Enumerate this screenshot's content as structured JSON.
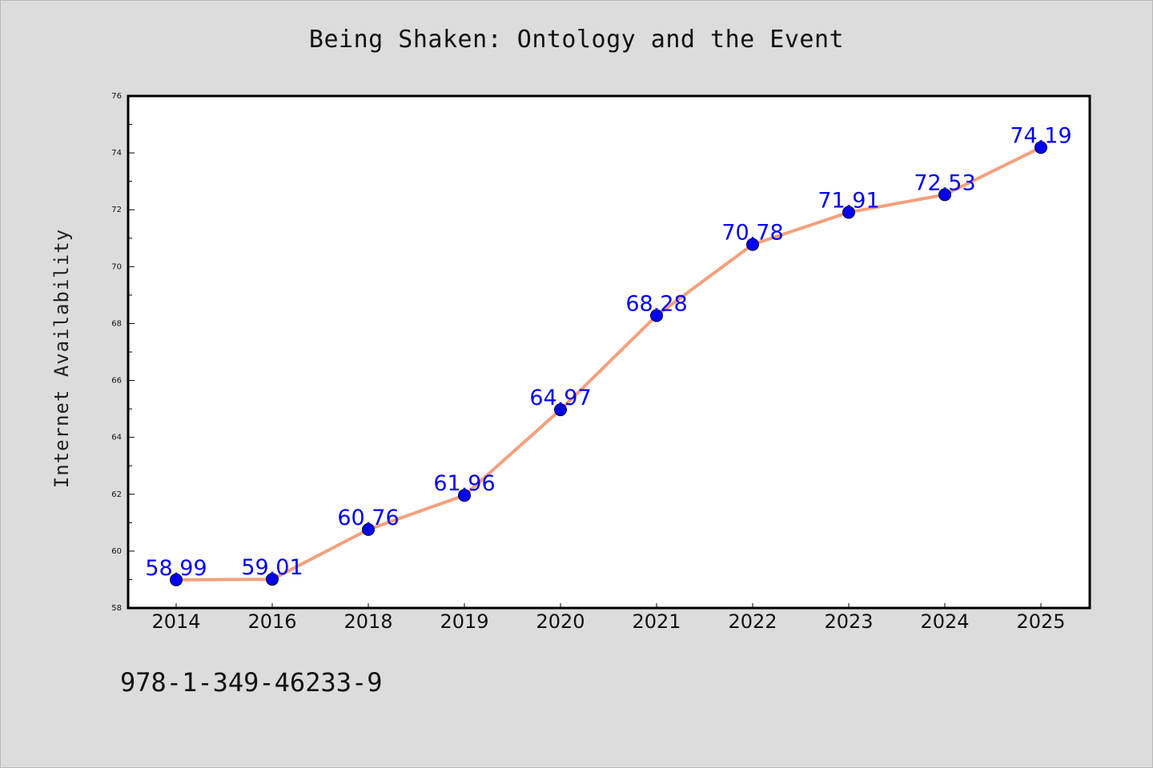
{
  "chart_data": {
    "type": "line",
    "title": "Being Shaken: Ontology and the Event",
    "ylabel": "Internet Availability",
    "xlabel": "",
    "categories": [
      "2014",
      "2016",
      "2018",
      "2019",
      "2020",
      "2021",
      "2022",
      "2023",
      "2024",
      "2025"
    ],
    "series": [
      {
        "values": [
          58.99,
          59.01,
          60.76,
          61.96,
          64.97,
          68.28,
          70.78,
          71.91,
          72.53,
          74.19
        ],
        "labels": [
          "58.99",
          "59.01",
          "60.76",
          "61.96",
          "64.97",
          "68.28",
          "70.78",
          "71.91",
          "72.53",
          "74.19"
        ]
      }
    ],
    "ylim": [
      58,
      76
    ],
    "yticks": [
      "58",
      "60",
      "62",
      "64",
      "66",
      "68",
      "70",
      "72",
      "74",
      "76"
    ],
    "grid": false,
    "colors": {
      "line": "#f4a07c",
      "marker": "#0000ee",
      "label": "#0000ee"
    }
  },
  "footer": {
    "isbn": "978-1-349-46233-9"
  }
}
